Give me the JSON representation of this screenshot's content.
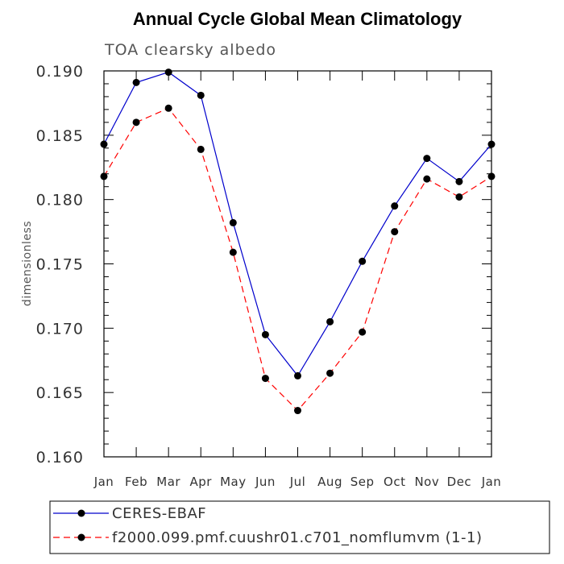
{
  "chart_data": {
    "type": "line",
    "title": "Annual Cycle Global Mean Climatology",
    "subtitle": "TOA clearsky albedo",
    "ylabel": "dimensionless",
    "xlabel": "",
    "categories": [
      "Jan",
      "Feb",
      "Mar",
      "Apr",
      "May",
      "Jun",
      "Jul",
      "Aug",
      "Sep",
      "Oct",
      "Nov",
      "Dec",
      "Jan"
    ],
    "ylim": [
      0.16,
      0.19
    ],
    "yticks": [
      "0.160",
      "0.165",
      "0.170",
      "0.175",
      "0.180",
      "0.185",
      "0.190"
    ],
    "legend_position": "bottom",
    "series": [
      {
        "name": "CERES-EBAF",
        "color": "#0000cc",
        "dash": "solid",
        "values": [
          0.1843,
          0.1891,
          0.1899,
          0.1881,
          0.1782,
          0.1695,
          0.1663,
          0.1705,
          0.1752,
          0.1795,
          0.1832,
          0.1814,
          0.1843
        ]
      },
      {
        "name": "f2000.099.pmf.cuushr01.c701_nomflumvm (1-1)",
        "color": "#ff0000",
        "dash": "dashed",
        "values": [
          0.1818,
          0.186,
          0.1871,
          0.1839,
          0.1759,
          0.1661,
          0.1636,
          0.1665,
          0.1697,
          0.1775,
          0.1816,
          0.1802,
          0.1818
        ]
      }
    ]
  }
}
